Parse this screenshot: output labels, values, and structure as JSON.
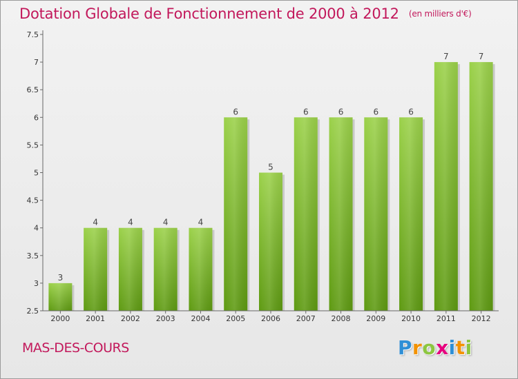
{
  "header": {
    "title": "Dotation Globale de Fonctionnement de 2000 à 2012",
    "subtitle": "(en milliers d'€)"
  },
  "commune": "MAS-DES-COURS",
  "logo": {
    "text": "Proxiti",
    "letters": [
      {
        "char": "P",
        "color": "#2e8fd6"
      },
      {
        "char": "r",
        "color": "#f39200"
      },
      {
        "char": "o",
        "color": "#8cc63f"
      },
      {
        "char": "x",
        "color": "#e6007e"
      },
      {
        "char": "i",
        "color": "#2e8fd6"
      },
      {
        "char": "t",
        "color": "#f39200"
      },
      {
        "char": "i",
        "color": "#8cc63f"
      }
    ]
  },
  "chart_data": {
    "type": "bar",
    "categories": [
      "2000",
      "2001",
      "2002",
      "2003",
      "2004",
      "2005",
      "2006",
      "2007",
      "2008",
      "2009",
      "2010",
      "2011",
      "2012"
    ],
    "values": [
      3,
      4,
      4,
      4,
      4,
      6,
      5,
      6,
      6,
      6,
      6,
      7,
      7
    ],
    "data_labels": [
      "3",
      "4",
      "4",
      "4",
      "4",
      "6",
      "5",
      "6",
      "6",
      "6",
      "6",
      "7",
      "7"
    ],
    "yticks": [
      "2.5",
      "3",
      "3.5",
      "4",
      "4.5",
      "5",
      "5.5",
      "6",
      "6.5",
      "7",
      "7.5"
    ],
    "ylim": [
      2.5,
      7.5
    ],
    "xlabel": "",
    "ylabel": "",
    "grid": false,
    "bar_color": "#8cc63f",
    "title_color": "#c2185b"
  }
}
